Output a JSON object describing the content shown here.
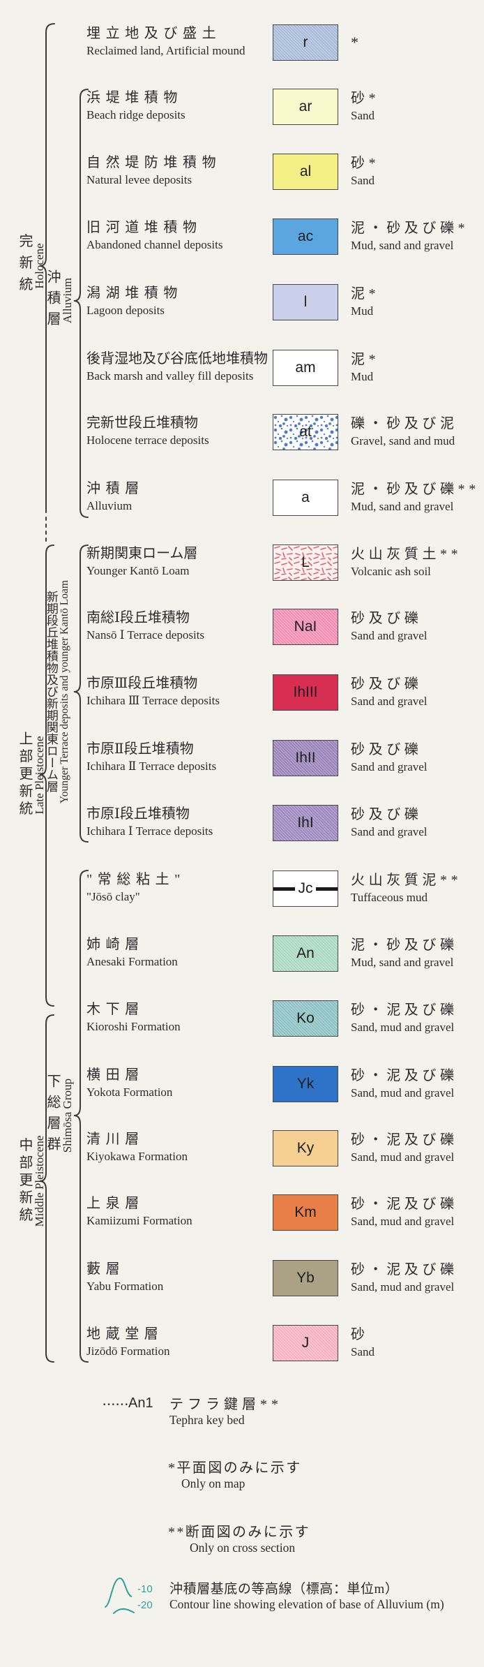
{
  "page": {
    "bg": "#f4f2ec",
    "ink": "#2b2b2b"
  },
  "strata": {
    "eras": [
      {
        "jp": "完新統",
        "en": "Holocene"
      },
      {
        "jp": "上部更新統",
        "en": "Late Pleistocene"
      },
      {
        "jp": "中部更新統",
        "en": "Middle Pleistocene"
      }
    ],
    "groups": [
      {
        "jp": "沖積層",
        "en": "Alluvium"
      },
      {
        "jp": "新期段丘堆積物及び新期関東ローム層",
        "en": "Younger Terrace deposits and younger Kantō Loam"
      },
      {
        "jp": "下総層群",
        "en": "Shimōsa Group"
      }
    ]
  },
  "legend": {
    "rows": [
      {
        "jp": "埋立地及び盛土",
        "en": "Reclaimed land, Artificial mound",
        "code": "r",
        "fill": "#a9bdd8",
        "pattern": "hatch",
        "pattern_color": "#52709e",
        "lith_jp": "*",
        "lith_en": ""
      },
      {
        "jp": "浜堤堆積物",
        "en": "Beach ridge deposits",
        "code": "ar",
        "fill": "#f8f8cd",
        "pattern": "solid",
        "lith_jp": "砂*",
        "lith_en": "Sand"
      },
      {
        "jp": "自然堤防堆積物",
        "en": "Natural levee deposits",
        "code": "al",
        "fill": "#f3ef86",
        "pattern": "solid",
        "lith_jp": "砂*",
        "lith_en": "Sand"
      },
      {
        "jp": "旧河道堆積物",
        "en": "Abandoned channel deposits",
        "code": "ac",
        "fill": "#5ca6df",
        "pattern": "solid",
        "lith_jp": "泥・砂及び礫*",
        "lith_en": "Mud, sand and gravel"
      },
      {
        "jp": "潟湖堆積物",
        "en": "Lagoon deposits",
        "code": "l",
        "fill": "#cbd0ea",
        "pattern": "solid",
        "lith_jp": "泥*",
        "lith_en": "Mud"
      },
      {
        "jp": "後背湿地及び谷底低地堆積物",
        "en": "Back marsh and valley fill deposits",
        "code": "am",
        "fill": "#ffffff",
        "pattern": "solid",
        "lith_jp": "泥*",
        "lith_en": "Mud"
      },
      {
        "jp": "完新世段丘堆積物",
        "en": "Holocene terrace deposits",
        "code": "at",
        "fill": "#ffffff",
        "pattern": "dots",
        "pattern_color": "#3a6fc0",
        "lith_jp": "礫・砂及び泥",
        "lith_en": "Gravel, sand and mud"
      },
      {
        "jp": "沖積層",
        "en": "Alluvium",
        "code": "a",
        "fill": "#ffffff",
        "pattern": "solid",
        "lith_jp": "泥・砂及び礫**",
        "lith_en": "Mud, sand and gravel"
      },
      {
        "jp": "新期関東ローム層",
        "en": "Younger Kantō Loam",
        "code": "L",
        "fill": "#fdf2f0",
        "pattern": "dashes",
        "pattern_color": "#e0636e",
        "lith_jp": "火山灰質土**",
        "lith_en": "Volcanic ash soil"
      },
      {
        "jp": "南総Ⅰ段丘堆積物",
        "en": "Nansō Ⅰ Terrace deposits",
        "code": "NaI",
        "fill": "#f18fb3",
        "pattern": "solid",
        "lith_jp": "砂及び礫",
        "lith_en": "Sand and gravel"
      },
      {
        "jp": "市原Ⅲ段丘堆積物",
        "en": "Ichihara Ⅲ Terrace deposits",
        "code": "IhIII",
        "fill": "#d72e52",
        "pattern": "solid",
        "lith_jp": "砂及び礫",
        "lith_en": "Sand and gravel"
      },
      {
        "jp": "市原Ⅱ段丘堆積物",
        "en": "Ichihara Ⅱ Terrace deposits",
        "code": "IhII",
        "fill": "#9a84ba",
        "pattern": "solid",
        "lith_jp": "砂及び礫",
        "lith_en": "Sand and gravel"
      },
      {
        "jp": "市原Ⅰ段丘堆積物",
        "en": "Ichihara Ⅰ Terrace deposits",
        "code": "IhI",
        "fill": "#9f8ac0",
        "pattern": "solid",
        "lith_jp": "砂及び礫",
        "lith_en": "Sand and gravel"
      },
      {
        "jp": "\"常総粘土\"",
        "en": "\"Jōsō clay\"",
        "code": "Jc",
        "fill": "#ffffff",
        "pattern": "band",
        "pattern_color": "#1b1b1b",
        "lith_jp": "火山灰質泥**",
        "lith_en": "Tuffaceous mud"
      },
      {
        "jp": "姉崎層",
        "en": "Anesaki Formation",
        "code": "An",
        "fill": "#abd9c0",
        "pattern": "solid",
        "lith_jp": "泥・砂及び礫",
        "lith_en": "Mud, sand and gravel"
      },
      {
        "jp": "木下層",
        "en": "Kioroshi Formation",
        "code": "Ko",
        "fill": "#8ec2c4",
        "pattern": "solid",
        "lith_jp": "砂・泥及び礫",
        "lith_en": "Sand, mud and gravel"
      },
      {
        "jp": "横田層",
        "en": "Yokota Formation",
        "code": "Yk",
        "fill": "#2e73c8",
        "pattern": "solid",
        "lith_jp": "砂・泥及び礫",
        "lith_en": "Sand, mud and gravel"
      },
      {
        "jp": "清川層",
        "en": "Kiyokawa Formation",
        "code": "Ky",
        "fill": "#f6cf92",
        "pattern": "solid",
        "lith_jp": "砂・泥及び礫",
        "lith_en": "Sand, mud and gravel"
      },
      {
        "jp": "上泉層",
        "en": "Kamiizumi Formation",
        "code": "Km",
        "fill": "#e87f46",
        "pattern": "solid",
        "lith_jp": "砂・泥及び礫",
        "lith_en": "Sand, mud and gravel"
      },
      {
        "jp": "藪層",
        "en": "Yabu Formation",
        "code": "Yb",
        "fill": "#aba285",
        "pattern": "solid",
        "lith_jp": "砂・泥及び礫",
        "lith_en": "Sand, mud and gravel"
      },
      {
        "jp": "地蔵堂層",
        "en": "Jizōdō Formation",
        "code": "J",
        "fill": "#f6b2c0",
        "pattern": "solid",
        "lith_jp": "砂",
        "lith_en": "Sand"
      }
    ]
  },
  "footnotes": {
    "tephra": {
      "leader": "······",
      "code": "An1",
      "jp": "テフラ鍵層**",
      "en": "Tephra key bed"
    },
    "only_map": {
      "jp": "*平面図のみに示す",
      "en": "Only on map"
    },
    "only_cross": {
      "jp": "**断面図のみに示す",
      "en": "Only on cross section"
    },
    "contour": {
      "jp": "沖積層基底の等高線（標高：単位m）",
      "en": "Contour line showing elevation of base of Alluvium  (m)",
      "labels": [
        "-10",
        "-20"
      ],
      "color": "#2ea197"
    }
  }
}
